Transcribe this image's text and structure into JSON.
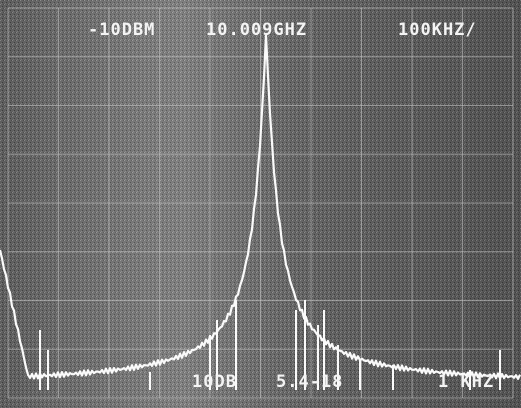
{
  "screen": {
    "reference_level": "-10DBM",
    "center_frequency": "10.009GHZ",
    "span_per_division": "100KHZ/",
    "scale": "10DB",
    "date": "5.4-18",
    "resolution_bandwidth": "1 KHZ"
  }
}
